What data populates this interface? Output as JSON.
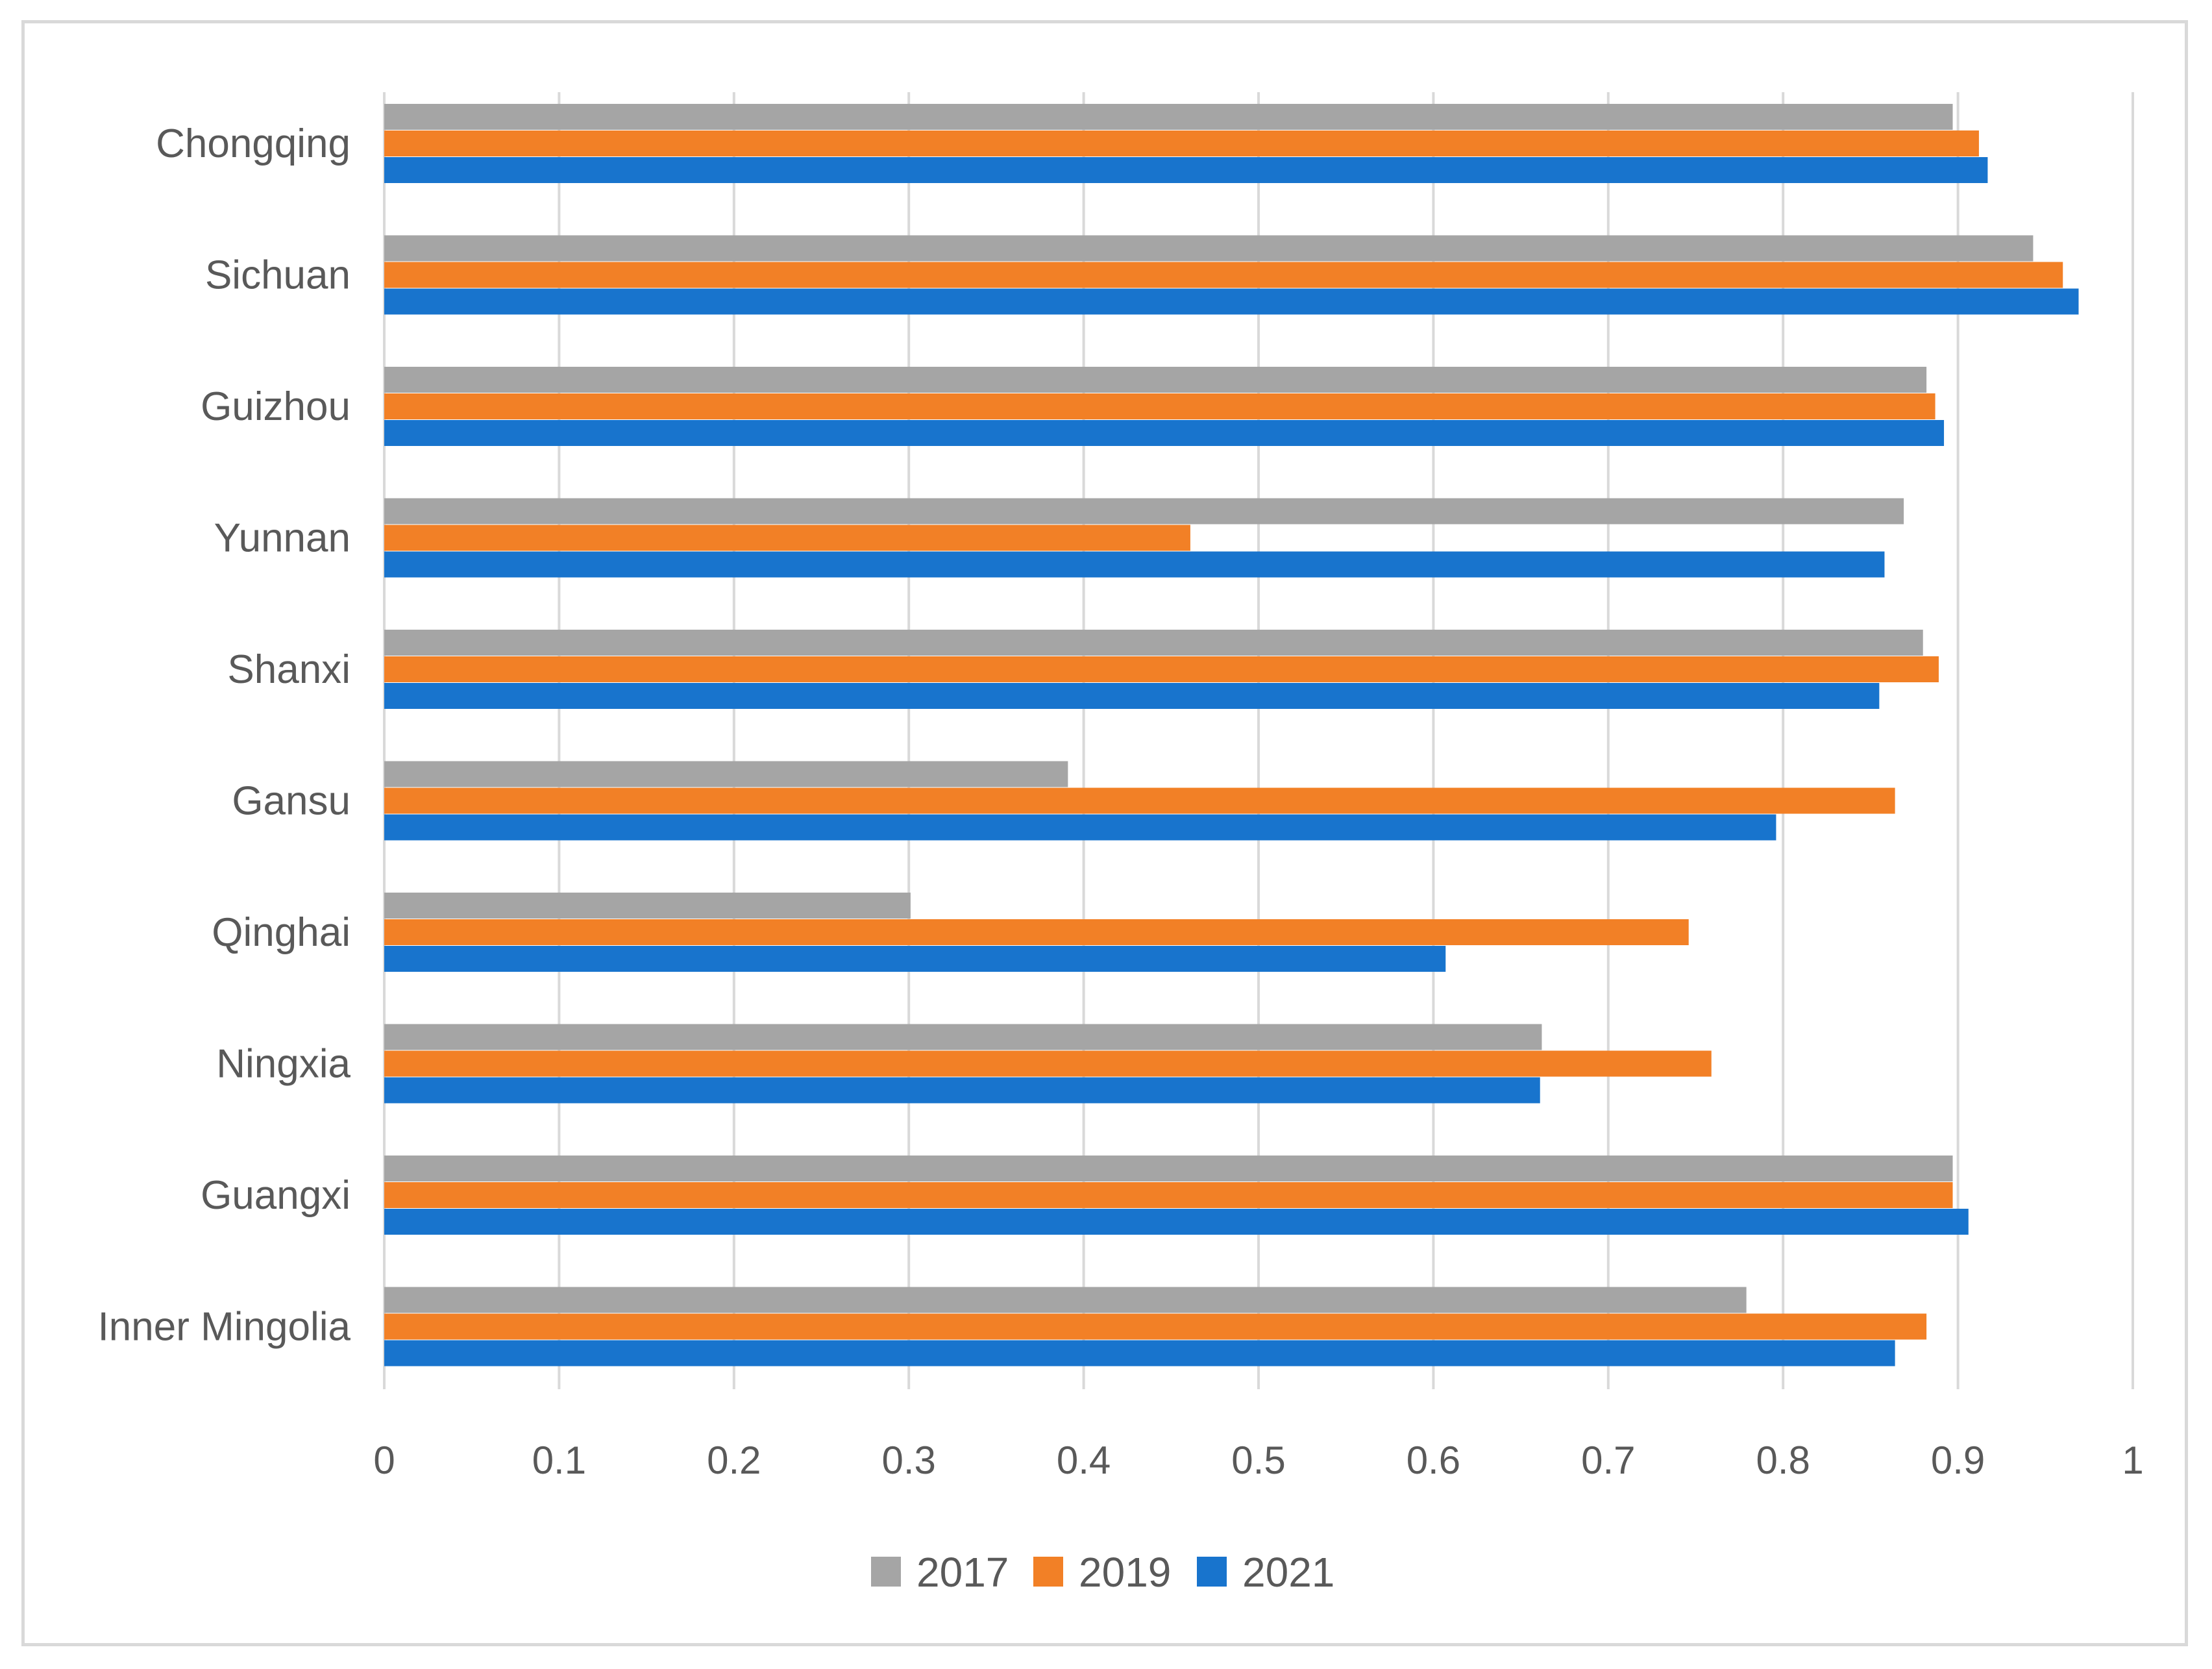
{
  "chart_data": {
    "type": "bar",
    "orientation": "horizontal",
    "title": "",
    "xlabel": "",
    "ylabel": "",
    "xlim": [
      0,
      1
    ],
    "ticks": [
      0,
      0.1,
      0.2,
      0.3,
      0.4,
      0.5,
      0.6,
      0.7,
      0.8,
      0.9,
      1
    ],
    "tick_labels": [
      "0",
      "0.1",
      "0.2",
      "0.3",
      "0.4",
      "0.5",
      "0.6",
      "0.7",
      "0.8",
      "0.9",
      "1"
    ],
    "grid": true,
    "legend_position": "bottom",
    "categories": [
      "Chongqing",
      "Sichuan",
      "Guizhou",
      "Yunnan",
      "Shanxi",
      "Gansu",
      "Qinghai",
      "Ningxia",
      "Guangxi",
      "Inner Mingolia"
    ],
    "series": [
      {
        "name": "2017",
        "color": "#a5a5a5",
        "values": [
          0.897,
          0.943,
          0.882,
          0.869,
          0.88,
          0.391,
          0.301,
          0.662,
          0.897,
          0.779
        ]
      },
      {
        "name": "2019",
        "color": "#f28026",
        "values": [
          0.912,
          0.96,
          0.887,
          0.461,
          0.889,
          0.864,
          0.746,
          0.759,
          0.897,
          0.882
        ]
      },
      {
        "name": "2021",
        "color": "#1874cd",
        "values": [
          0.917,
          0.969,
          0.892,
          0.858,
          0.855,
          0.796,
          0.607,
          0.661,
          0.906,
          0.864
        ]
      }
    ]
  }
}
